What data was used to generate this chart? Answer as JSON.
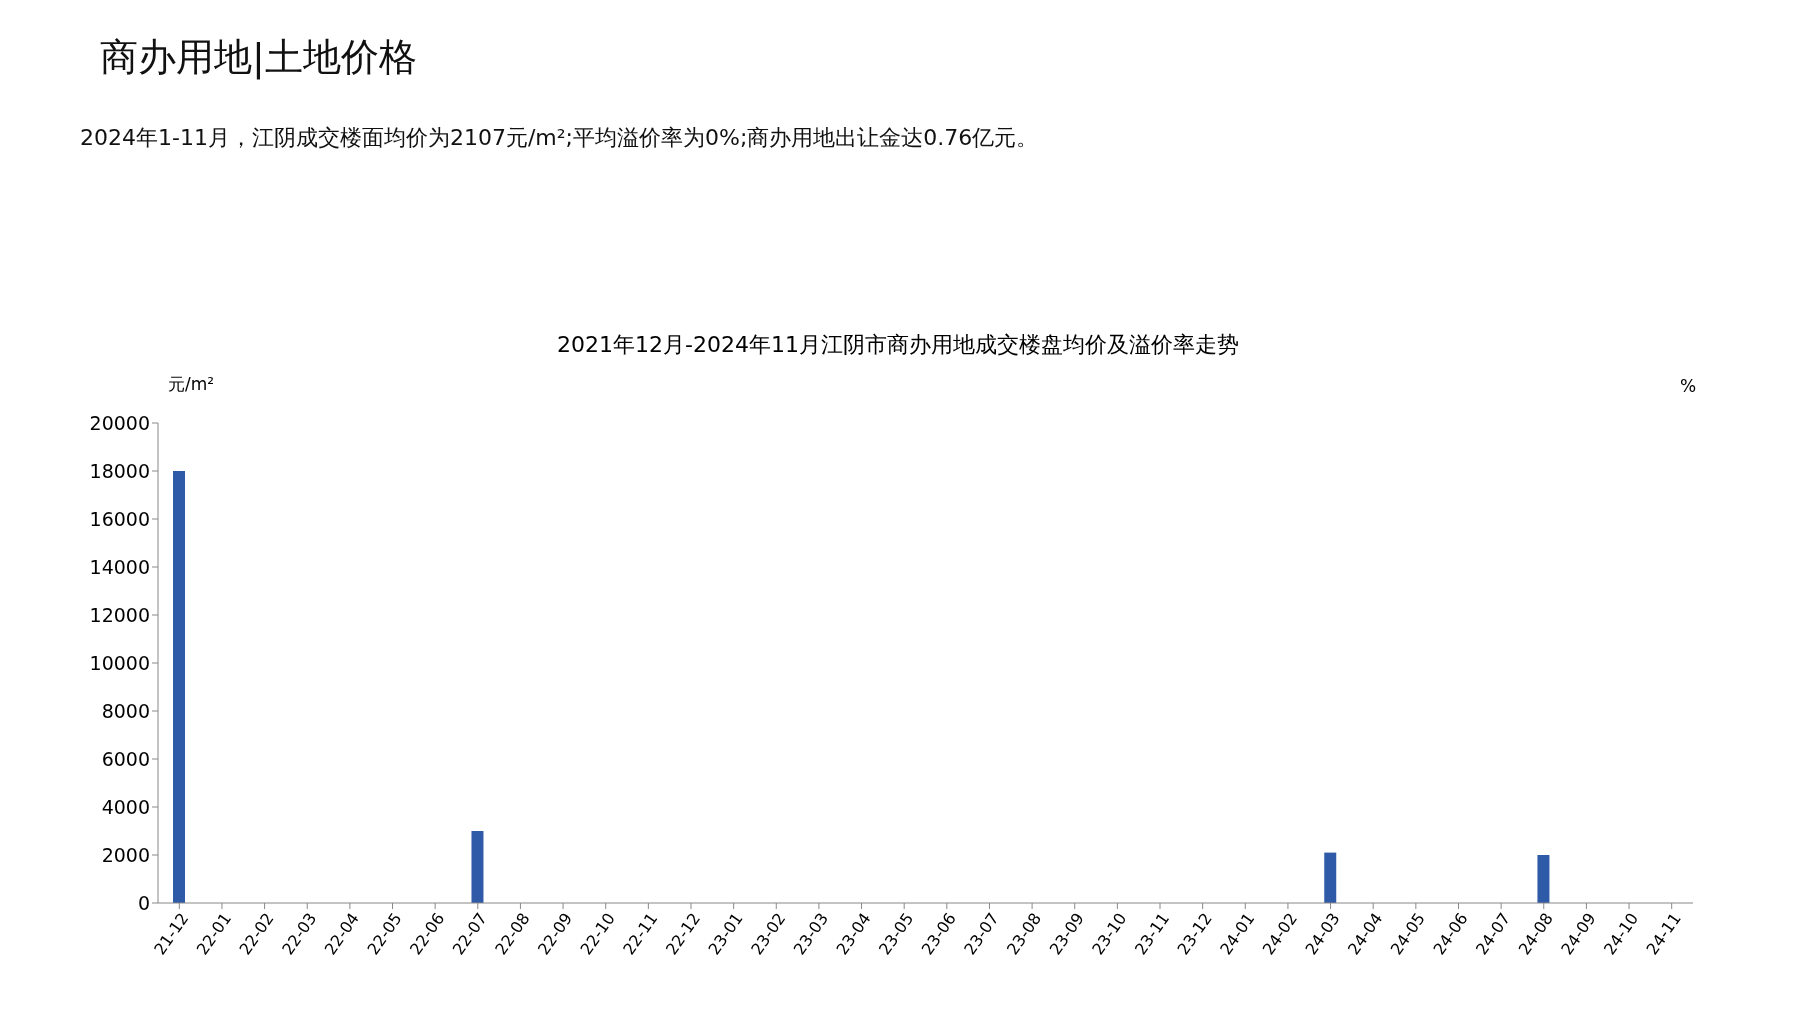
{
  "chart_data": {
    "type": "bar",
    "title": "2021年12月-2024年11月江阴市商办用地成交楼盘均价及溢价率走势",
    "ylabel": "元/m²",
    "y2label": "%",
    "annotations": [
      "商办用地|土地价格",
      "2024年1-11月，江阴成交楼面均价为2107元/m²;平均溢价率为0%;商办用地出让金达0.76亿元。"
    ],
    "categories": [
      "21-12",
      "22-01",
      "22-02",
      "22-03",
      "22-04",
      "22-05",
      "22-06",
      "22-07",
      "22-08",
      "22-09",
      "22-10",
      "22-11",
      "22-12",
      "23-01",
      "23-02",
      "23-03",
      "23-04",
      "23-05",
      "23-06",
      "23-07",
      "23-08",
      "23-09",
      "23-10",
      "23-11",
      "23-12",
      "24-01",
      "24-02",
      "24-03",
      "24-04",
      "24-05",
      "24-06",
      "24-07",
      "24-08",
      "24-09",
      "24-10",
      "24-11"
    ],
    "values": [
      18000,
      0,
      0,
      0,
      0,
      0,
      0,
      3000,
      0,
      0,
      0,
      0,
      0,
      0,
      0,
      0,
      0,
      0,
      0,
      0,
      0,
      0,
      0,
      0,
      0,
      0,
      0,
      2100,
      0,
      0,
      0,
      0,
      2000,
      0,
      0,
      0
    ],
    "color": "#2f5aa8",
    "ylim": [
      0,
      20000
    ],
    "yticks": [
      0,
      2000,
      4000,
      6000,
      8000,
      10000,
      12000,
      14000,
      16000,
      18000,
      20000
    ],
    "grid": false,
    "legend": false
  }
}
